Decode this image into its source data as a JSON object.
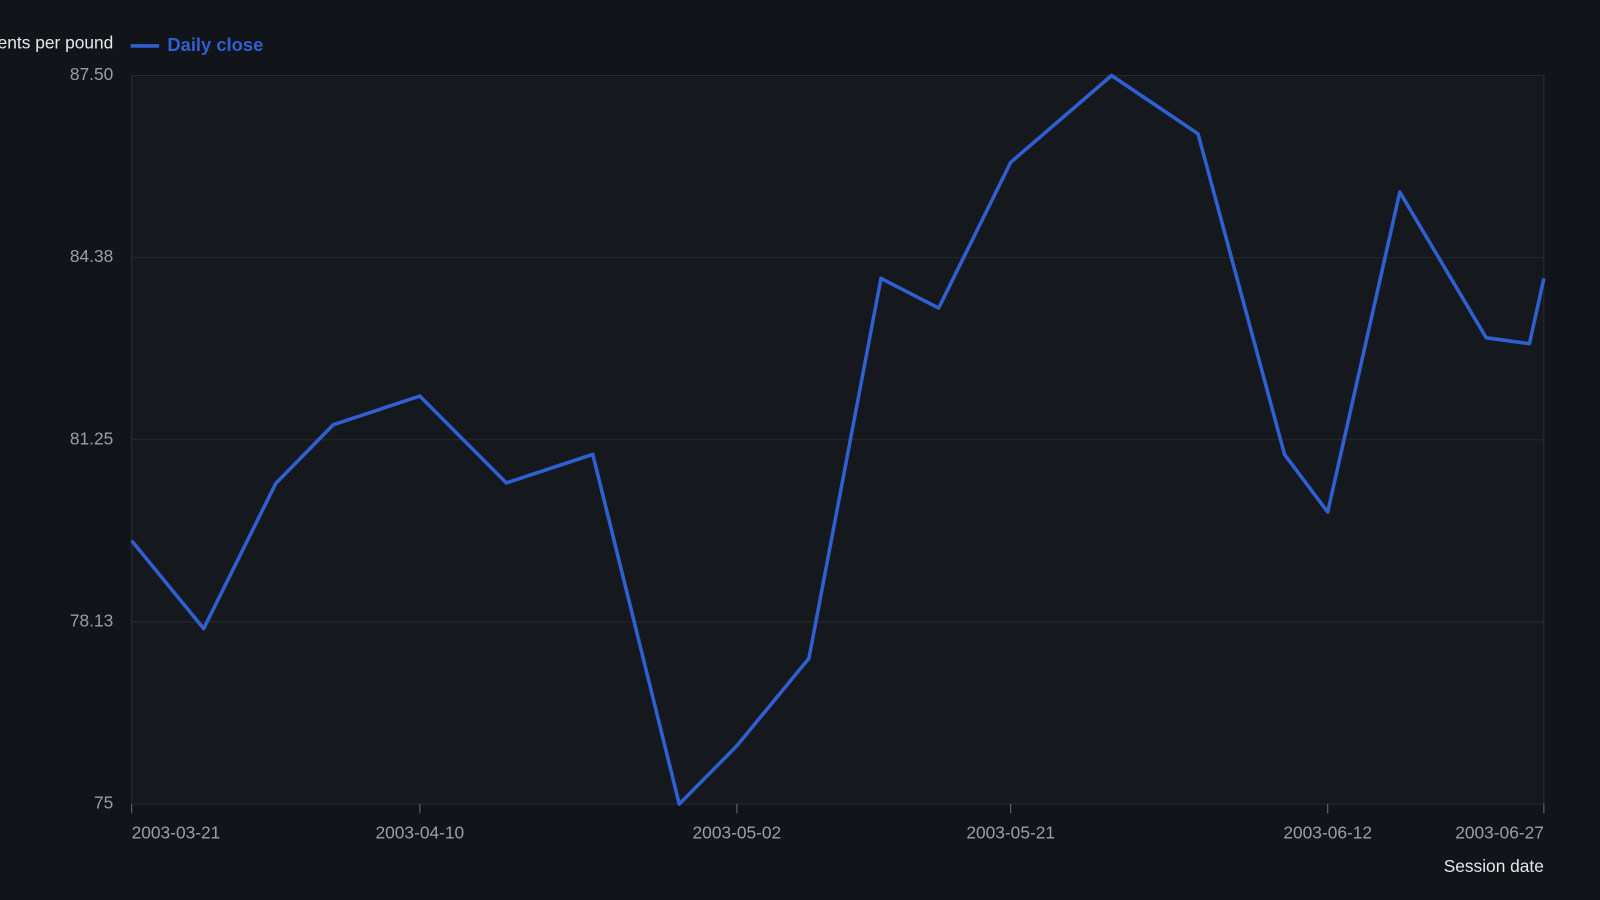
{
  "chart_data": {
    "type": "line",
    "y_label": "Cents per pound",
    "x_label": "Session date",
    "x": [
      "2003-03-21",
      "2003-03-26",
      "2003-03-31",
      "2003-04-04",
      "2003-04-10",
      "2003-04-16",
      "2003-04-22",
      "2003-04-28",
      "2003-05-02",
      "2003-05-07",
      "2003-05-12",
      "2003-05-16",
      "2003-05-21",
      "2003-05-28",
      "2003-06-03",
      "2003-06-09",
      "2003-06-12",
      "2003-06-17",
      "2003-06-23",
      "2003-06-26",
      "2003-06-27"
    ],
    "series": [
      {
        "name": "Daily close",
        "color": "#2f5fd0",
        "values": [
          79.52,
          78.01,
          80.5,
          81.51,
          82.0,
          80.51,
          81.0,
          75.0,
          76.0,
          77.5,
          84.02,
          83.51,
          86.01,
          87.5,
          86.5,
          81.0,
          80.01,
          85.5,
          83.0,
          82.9,
          84.02
        ]
      }
    ],
    "xlim": [
      "2003-03-21",
      "2003-06-27"
    ],
    "xticks": [
      "2003-03-21",
      "2003-04-10",
      "2003-05-02",
      "2003-05-21",
      "2003-06-12",
      "2003-06-27"
    ],
    "ylim": [
      75,
      87.5
    ],
    "yticks": [
      75,
      {
        "value": 78.125,
        "label": "78.13"
      },
      81.25,
      {
        "value": 84.375,
        "label": "84.38"
      },
      {
        "value": 87.5,
        "label": "87.50"
      }
    ],
    "grid": true
  }
}
